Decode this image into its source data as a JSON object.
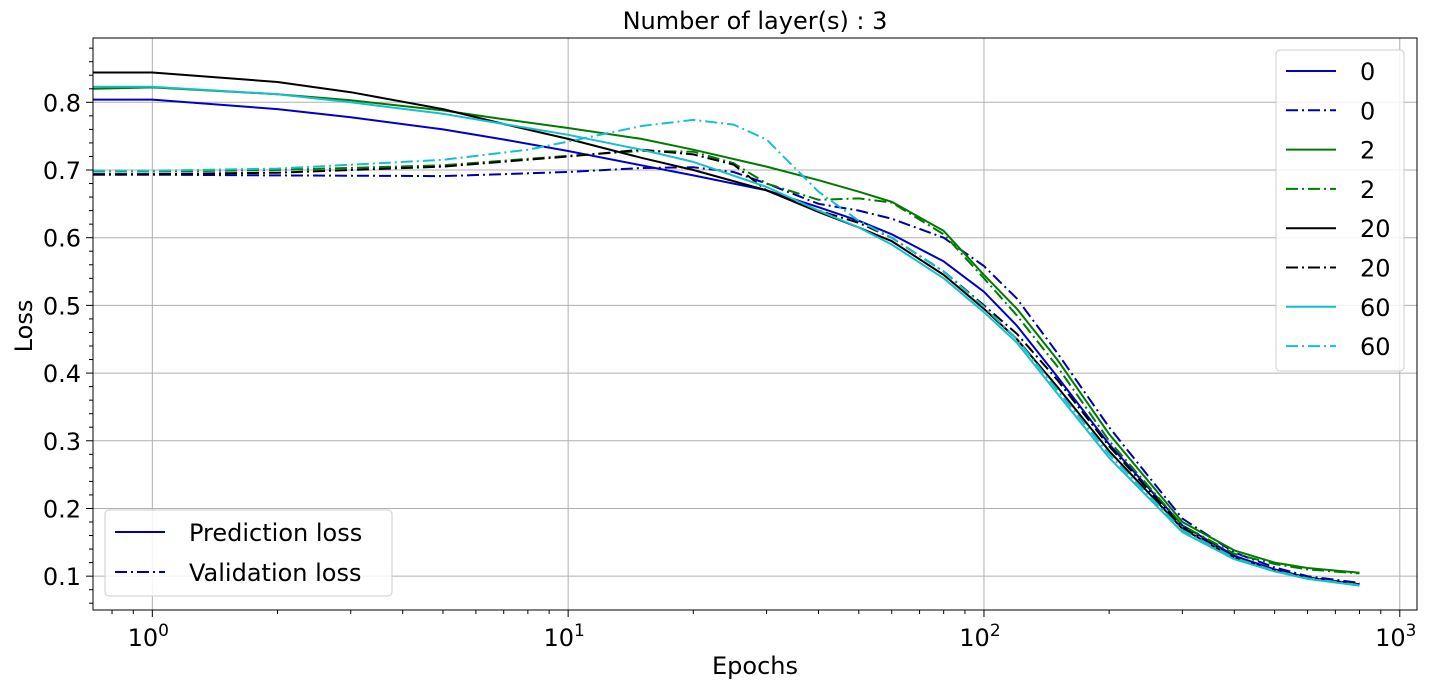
{
  "chart_data": {
    "type": "line",
    "title": "Number of layer(s) : 3",
    "xlabel": "Epochs",
    "ylabel": "Loss",
    "xscale": "log",
    "xlim": [
      0.72,
      1100
    ],
    "ylim": [
      0.05,
      0.895
    ],
    "grid": true,
    "x_ticks": [
      1,
      10,
      100,
      1000
    ],
    "x_tick_labels": [
      {
        "base": "10",
        "exp": "0"
      },
      {
        "base": "10",
        "exp": "1"
      },
      {
        "base": "10",
        "exp": "2"
      },
      {
        "base": "10",
        "exp": "3"
      }
    ],
    "y_ticks": [
      0.1,
      0.2,
      0.3,
      0.4,
      0.5,
      0.6,
      0.7,
      0.8
    ],
    "y_tick_labels": [
      "0.1",
      "0.2",
      "0.3",
      "0.4",
      "0.5",
      "0.6",
      "0.7",
      "0.8"
    ],
    "series": [
      {
        "name": "0",
        "kind": "Prediction loss",
        "color": "#0000cc",
        "dash": "solid",
        "points": [
          [
            0.72,
            0.804
          ],
          [
            1,
            0.804
          ],
          [
            2,
            0.79
          ],
          [
            3,
            0.778
          ],
          [
            5,
            0.76
          ],
          [
            7,
            0.745
          ],
          [
            10,
            0.728
          ],
          [
            15,
            0.707
          ],
          [
            20,
            0.692
          ],
          [
            30,
            0.67
          ],
          [
            40,
            0.645
          ],
          [
            50,
            0.625
          ],
          [
            60,
            0.605
          ],
          [
            80,
            0.565
          ],
          [
            100,
            0.52
          ],
          [
            120,
            0.47
          ],
          [
            150,
            0.395
          ],
          [
            200,
            0.295
          ],
          [
            300,
            0.175
          ],
          [
            400,
            0.13
          ],
          [
            500,
            0.11
          ],
          [
            600,
            0.098
          ],
          [
            800,
            0.088
          ]
        ]
      },
      {
        "name": "0",
        "kind": "Validation loss",
        "color": "#0000aa",
        "dash": "dashdot",
        "points": [
          [
            0.72,
            0.693
          ],
          [
            1,
            0.693
          ],
          [
            2,
            0.692
          ],
          [
            5,
            0.691
          ],
          [
            10,
            0.697
          ],
          [
            15,
            0.703
          ],
          [
            20,
            0.704
          ],
          [
            25,
            0.697
          ],
          [
            30,
            0.68
          ],
          [
            40,
            0.65
          ],
          [
            50,
            0.64
          ],
          [
            60,
            0.628
          ],
          [
            80,
            0.6
          ],
          [
            100,
            0.558
          ],
          [
            120,
            0.51
          ],
          [
            150,
            0.43
          ],
          [
            200,
            0.32
          ],
          [
            300,
            0.185
          ],
          [
            400,
            0.135
          ],
          [
            500,
            0.113
          ],
          [
            600,
            0.1
          ],
          [
            800,
            0.09
          ]
        ]
      },
      {
        "name": "2",
        "kind": "Prediction loss",
        "color": "#007a00",
        "dash": "solid",
        "points": [
          [
            0.72,
            0.82
          ],
          [
            1,
            0.822
          ],
          [
            2,
            0.812
          ],
          [
            3,
            0.803
          ],
          [
            5,
            0.788
          ],
          [
            7,
            0.775
          ],
          [
            10,
            0.762
          ],
          [
            15,
            0.746
          ],
          [
            20,
            0.73
          ],
          [
            30,
            0.705
          ],
          [
            40,
            0.685
          ],
          [
            50,
            0.668
          ],
          [
            60,
            0.653
          ],
          [
            80,
            0.61
          ],
          [
            100,
            0.545
          ],
          [
            120,
            0.495
          ],
          [
            150,
            0.42
          ],
          [
            200,
            0.31
          ],
          [
            300,
            0.18
          ],
          [
            400,
            0.138
          ],
          [
            500,
            0.12
          ],
          [
            600,
            0.112
          ],
          [
            800,
            0.105
          ]
        ]
      },
      {
        "name": "2",
        "kind": "Validation loss",
        "color": "#007a00",
        "dash": "dashdot",
        "points": [
          [
            0.72,
            0.698
          ],
          [
            1,
            0.698
          ],
          [
            2,
            0.7
          ],
          [
            5,
            0.707
          ],
          [
            10,
            0.721
          ],
          [
            15,
            0.728
          ],
          [
            20,
            0.727
          ],
          [
            25,
            0.71
          ],
          [
            30,
            0.68
          ],
          [
            40,
            0.656
          ],
          [
            50,
            0.658
          ],
          [
            60,
            0.652
          ],
          [
            80,
            0.605
          ],
          [
            100,
            0.54
          ],
          [
            120,
            0.485
          ],
          [
            150,
            0.41
          ],
          [
            200,
            0.3
          ],
          [
            300,
            0.175
          ],
          [
            400,
            0.133
          ],
          [
            500,
            0.118
          ],
          [
            600,
            0.11
          ],
          [
            800,
            0.104
          ]
        ]
      },
      {
        "name": "20",
        "kind": "Prediction loss",
        "color": "#000000",
        "dash": "solid",
        "points": [
          [
            0.72,
            0.844
          ],
          [
            1,
            0.844
          ],
          [
            2,
            0.83
          ],
          [
            3,
            0.815
          ],
          [
            5,
            0.79
          ],
          [
            7,
            0.768
          ],
          [
            10,
            0.746
          ],
          [
            15,
            0.718
          ],
          [
            20,
            0.7
          ],
          [
            30,
            0.67
          ],
          [
            40,
            0.638
          ],
          [
            50,
            0.615
          ],
          [
            60,
            0.595
          ],
          [
            80,
            0.545
          ],
          [
            100,
            0.495
          ],
          [
            120,
            0.45
          ],
          [
            150,
            0.38
          ],
          [
            200,
            0.285
          ],
          [
            300,
            0.17
          ],
          [
            400,
            0.127
          ],
          [
            500,
            0.108
          ],
          [
            600,
            0.097
          ],
          [
            800,
            0.087
          ]
        ]
      },
      {
        "name": "20",
        "kind": "Validation loss",
        "color": "#000000",
        "dash": "dashdot",
        "points": [
          [
            0.72,
            0.694
          ],
          [
            1,
            0.694
          ],
          [
            2,
            0.696
          ],
          [
            5,
            0.705
          ],
          [
            10,
            0.72
          ],
          [
            15,
            0.73
          ],
          [
            20,
            0.723
          ],
          [
            25,
            0.708
          ],
          [
            30,
            0.67
          ],
          [
            40,
            0.64
          ],
          [
            50,
            0.622
          ],
          [
            60,
            0.6
          ],
          [
            80,
            0.55
          ],
          [
            100,
            0.5
          ],
          [
            120,
            0.458
          ],
          [
            150,
            0.39
          ],
          [
            200,
            0.292
          ],
          [
            300,
            0.172
          ],
          [
            400,
            0.128
          ],
          [
            500,
            0.109
          ],
          [
            600,
            0.098
          ],
          [
            800,
            0.088
          ]
        ]
      },
      {
        "name": "60",
        "kind": "Prediction loss",
        "color": "#17becf",
        "dash": "solid",
        "points": [
          [
            0.72,
            0.823
          ],
          [
            1,
            0.823
          ],
          [
            2,
            0.812
          ],
          [
            3,
            0.8
          ],
          [
            5,
            0.783
          ],
          [
            7,
            0.768
          ],
          [
            10,
            0.752
          ],
          [
            15,
            0.73
          ],
          [
            20,
            0.712
          ],
          [
            30,
            0.675
          ],
          [
            40,
            0.64
          ],
          [
            50,
            0.615
          ],
          [
            60,
            0.59
          ],
          [
            80,
            0.54
          ],
          [
            100,
            0.49
          ],
          [
            120,
            0.445
          ],
          [
            150,
            0.37
          ],
          [
            200,
            0.275
          ],
          [
            300,
            0.165
          ],
          [
            400,
            0.125
          ],
          [
            500,
            0.107
          ],
          [
            600,
            0.096
          ],
          [
            800,
            0.086
          ]
        ]
      },
      {
        "name": "60",
        "kind": "Validation loss",
        "color": "#17becf",
        "dash": "dashdot",
        "points": [
          [
            0.72,
            0.699
          ],
          [
            1,
            0.699
          ],
          [
            2,
            0.702
          ],
          [
            5,
            0.715
          ],
          [
            8,
            0.73
          ],
          [
            10,
            0.742
          ],
          [
            15,
            0.765
          ],
          [
            20,
            0.774
          ],
          [
            25,
            0.767
          ],
          [
            30,
            0.745
          ],
          [
            40,
            0.668
          ],
          [
            50,
            0.625
          ],
          [
            60,
            0.6
          ],
          [
            80,
            0.55
          ],
          [
            100,
            0.498
          ],
          [
            120,
            0.45
          ],
          [
            150,
            0.375
          ],
          [
            200,
            0.28
          ],
          [
            300,
            0.168
          ],
          [
            400,
            0.127
          ],
          [
            500,
            0.108
          ],
          [
            600,
            0.097
          ],
          [
            800,
            0.087
          ]
        ]
      }
    ],
    "legend_series": {
      "placement": "top-right",
      "entries": [
        {
          "label": "0",
          "color": "#0000cc",
          "dash": "solid"
        },
        {
          "label": "0",
          "color": "#0000aa",
          "dash": "dashdot"
        },
        {
          "label": "2",
          "color": "#007a00",
          "dash": "solid"
        },
        {
          "label": "2",
          "color": "#007a00",
          "dash": "dashdot"
        },
        {
          "label": "20",
          "color": "#000000",
          "dash": "solid"
        },
        {
          "label": "20",
          "color": "#000000",
          "dash": "dashdot"
        },
        {
          "label": "60",
          "color": "#17becf",
          "dash": "solid"
        },
        {
          "label": "60",
          "color": "#17becf",
          "dash": "dashdot"
        }
      ]
    },
    "legend_kind": {
      "placement": "bottom-left",
      "entries": [
        {
          "label": "Prediction loss",
          "color": "#0000aa",
          "dash": "solid"
        },
        {
          "label": "Validation loss",
          "color": "#0000aa",
          "dash": "dashdot"
        }
      ]
    }
  }
}
